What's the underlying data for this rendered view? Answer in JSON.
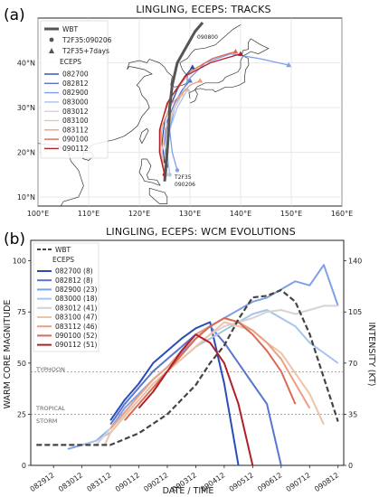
{
  "panels": {
    "a": {
      "label": "(a)",
      "title": "LINGLING, ECEPS: TRACKS",
      "legend": {
        "wbt": "WBT",
        "t2f35": "T2F35:090206",
        "t2f35_7": "T2F35+7days",
        "eceps": "ECEPS"
      },
      "lat_ticks": [
        "10°N",
        "20°N",
        "30°N",
        "40°N"
      ],
      "lon_ticks": [
        "100°E",
        "110°E",
        "120°E",
        "130°E",
        "140°E",
        "150°E",
        "160°E"
      ],
      "annotations": {
        "start": "090800",
        "t2f35": "T2F35",
        "t2f35_date": "090206"
      }
    },
    "b": {
      "label": "(b)",
      "title": "LINGLING, ECEPS: WCM EVOLUTIONS",
      "xlabel": "DATE / TIME",
      "ylabel_left": "WARM CORE MAGNITUDE",
      "ylabel_right": "INTENSITY (KT)",
      "legend": {
        "wbt": "WBT",
        "eceps": "ECEPS"
      },
      "thresholds": {
        "typhoon": "TYPHOON",
        "tropical": "TROPICAL",
        "storm": "STORM"
      }
    }
  },
  "chart_data": [
    {
      "type": "line",
      "title": "LINGLING, ECEPS: TRACKS",
      "xlim": [
        100,
        160
      ],
      "ylim": [
        8,
        50
      ],
      "xticks": [
        100,
        110,
        120,
        130,
        140,
        150,
        160
      ],
      "yticks": [
        10,
        20,
        30,
        40
      ],
      "series": [
        {
          "name": "WBT",
          "color": "#555555",
          "points": [
            [
              125.0,
              13.5
            ],
            [
              125.2,
              16
            ],
            [
              125.5,
              20
            ],
            [
              125.8,
              25
            ],
            [
              126.0,
              30
            ],
            [
              126.5,
              35
            ],
            [
              127.5,
              40
            ],
            [
              129.5,
              44
            ],
            [
              131,
              47
            ],
            [
              132.5,
              49
            ]
          ]
        },
        {
          "name": "082700",
          "color": "#2b4bb5",
          "points": [
            [
              125,
              18
            ],
            [
              124.5,
              22
            ],
            [
              125,
              27
            ],
            [
              126,
              30
            ],
            [
              127.5,
              34
            ],
            [
              129,
              37
            ],
            [
              130.5,
              39
            ]
          ]
        },
        {
          "name": "082812",
          "color": "#5a75d0",
          "points": [
            [
              125.5,
              17
            ],
            [
              125,
              22
            ],
            [
              125.5,
              27
            ],
            [
              127,
              31
            ],
            [
              128.5,
              34
            ],
            [
              130,
              36
            ]
          ]
        },
        {
          "name": "082900",
          "color": "#7ea0ea",
          "points": [
            [
              127.5,
              16
            ],
            [
              126.5,
              20
            ],
            [
              126,
              25
            ],
            [
              127,
              30
            ],
            [
              129.5,
              36
            ],
            [
              133,
              40
            ],
            [
              138,
              42
            ],
            [
              143.5,
              41
            ],
            [
              149.5,
              39.5
            ]
          ]
        },
        {
          "name": "083000",
          "color": "#a8c4ea",
          "points": [
            [
              126,
              15
            ],
            [
              125.5,
              20
            ],
            [
              126,
              25
            ],
            [
              127.5,
              30
            ],
            [
              129.5,
              34
            ]
          ]
        },
        {
          "name": "083012",
          "color": "#d4d4d4",
          "points": [
            [
              125.5,
              15
            ],
            [
              125,
              20
            ],
            [
              125.5,
              25
            ],
            [
              127,
              30
            ],
            [
              129,
              34
            ]
          ]
        },
        {
          "name": "083100",
          "color": "#eec4a8",
          "points": [
            [
              125,
              15
            ],
            [
              124.5,
              20
            ],
            [
              125,
              25
            ],
            [
              126.5,
              29
            ],
            [
              128.5,
              33
            ]
          ]
        },
        {
          "name": "083112",
          "color": "#eca080",
          "points": [
            [
              125,
              15
            ],
            [
              124.2,
              20
            ],
            [
              124.5,
              26
            ],
            [
              126.5,
              31
            ],
            [
              130,
              35
            ],
            [
              132,
              36
            ]
          ]
        },
        {
          "name": "090100",
          "color": "#d96a55",
          "points": [
            [
              125,
              15
            ],
            [
              124,
              20
            ],
            [
              124.2,
              26
            ],
            [
              126,
              32
            ],
            [
              130,
              38
            ],
            [
              134.5,
              41
            ],
            [
              139,
              42.5
            ]
          ]
        },
        {
          "name": "090112",
          "color": "#b02028",
          "points": [
            [
              125,
              15
            ],
            [
              124,
              20
            ],
            [
              124,
              25
            ],
            [
              125.5,
              31
            ],
            [
              129,
              37
            ],
            [
              134,
              40
            ],
            [
              140,
              42
            ]
          ]
        }
      ]
    },
    {
      "type": "line",
      "title": "LINGLING, ECEPS: WCM EVOLUTIONS",
      "xlabel": "DATE / TIME",
      "ylabel": "WARM CORE MAGNITUDE",
      "y2label": "INTENSITY (KT)",
      "categories": [
        "082912",
        "083012",
        "083112",
        "090112",
        "090212",
        "090312",
        "090412",
        "090512",
        "090612",
        "090712",
        "090812"
      ],
      "xlim": [
        0,
        10
      ],
      "ylim": [
        0,
        110
      ],
      "y2lim": [
        0,
        154
      ],
      "yticks": [
        0,
        25,
        50,
        75,
        100
      ],
      "y2ticks": [
        0,
        35,
        70,
        105,
        140
      ],
      "thresholds": [
        {
          "label": "TYPHOON",
          "value": 46
        },
        {
          "label": "TROPICAL STORM",
          "value": 25
        }
      ],
      "series": [
        {
          "name": "WBT",
          "axis": "right",
          "color": "#444444",
          "dashed": true,
          "x": [
            -0.6,
            0,
            1,
            2,
            3,
            4,
            5,
            5.5,
            6,
            6.5,
            7,
            7.5,
            8,
            8.5,
            9,
            9.5,
            10
          ],
          "values": [
            14,
            14,
            14,
            14,
            22,
            35,
            55,
            70,
            82,
            100,
            115,
            116,
            120,
            112,
            90,
            60,
            30
          ]
        },
        {
          "name": "082700 (8)",
          "color": "#2b4bb5",
          "x": [
            2,
            2.5,
            3,
            3.5,
            4,
            4.5,
            5,
            5.5,
            6,
            6.5
          ],
          "values": [
            22,
            32,
            40,
            50,
            56,
            62,
            67,
            70,
            40,
            0
          ]
        },
        {
          "name": "082812 (8)",
          "color": "#5a75d0",
          "x": [
            2,
            2.5,
            3,
            3.5,
            4,
            4.5,
            5,
            5.5,
            6,
            6.5,
            7,
            7.5,
            8
          ],
          "values": [
            20,
            30,
            38,
            46,
            52,
            58,
            64,
            68,
            60,
            50,
            40,
            30,
            0
          ]
        },
        {
          "name": "082900 (23)",
          "color": "#7ea0ea",
          "x": [
            0.5,
            1,
            1.5,
            2,
            2.5,
            3,
            3.5,
            4,
            4.5,
            5,
            5.5,
            6,
            6.5,
            7,
            7.5,
            8,
            8.5,
            9,
            9.5,
            10
          ],
          "values": [
            8,
            10,
            12,
            18,
            28,
            35,
            42,
            48,
            55,
            62,
            68,
            72,
            76,
            80,
            82,
            86,
            90,
            88,
            98,
            78
          ]
        },
        {
          "name": "083000 (18)",
          "color": "#a8c4ea",
          "x": [
            1,
            1.5,
            2,
            2.5,
            3,
            3.5,
            4,
            4.5,
            5,
            5.5,
            6,
            6.5,
            7,
            7.5,
            8,
            8.5,
            9,
            9.5,
            10
          ],
          "values": [
            10,
            12,
            16,
            24,
            32,
            40,
            46,
            52,
            58,
            62,
            66,
            70,
            74,
            76,
            72,
            68,
            60,
            55,
            50
          ]
        },
        {
          "name": "083012 (41)",
          "color": "#d4d4d4",
          "x": [
            1.5,
            2,
            2.5,
            3,
            3.5,
            4,
            4.5,
            5,
            5.5,
            6,
            6.5,
            7,
            7.5,
            8,
            8.5,
            9,
            9.5,
            10
          ],
          "values": [
            10,
            18,
            25,
            32,
            40,
            46,
            52,
            58,
            64,
            68,
            70,
            72,
            75,
            76,
            74,
            76,
            78,
            78
          ]
        },
        {
          "name": "083100 (47)",
          "color": "#eec4a8",
          "x": [
            1.8,
            2,
            2.5,
            3,
            3.5,
            4,
            4.5,
            5,
            5.5,
            6,
            6.5,
            7,
            7.5,
            8,
            8.5,
            9,
            9.5
          ],
          "values": [
            10,
            16,
            24,
            32,
            40,
            46,
            52,
            58,
            64,
            70,
            68,
            66,
            60,
            55,
            45,
            35,
            20
          ]
        },
        {
          "name": "083112 (46)",
          "color": "#eca080",
          "x": [
            2,
            2.5,
            3,
            3.5,
            4,
            4.5,
            5,
            5.5,
            6,
            6.5,
            7,
            7.5,
            8,
            8.5,
            9
          ],
          "values": [
            18,
            26,
            34,
            42,
            48,
            56,
            64,
            68,
            72,
            70,
            66,
            60,
            52,
            40,
            28
          ]
        },
        {
          "name": "090100 (52)",
          "color": "#d96a55",
          "x": [
            2.5,
            3,
            3.5,
            4,
            4.5,
            5,
            5.5,
            6,
            6.5,
            7,
            7.5,
            8,
            8.5
          ],
          "values": [
            22,
            30,
            38,
            46,
            54,
            62,
            68,
            72,
            70,
            64,
            56,
            46,
            30
          ]
        },
        {
          "name": "090112 (51)",
          "color": "#b02028",
          "x": [
            3,
            3.5,
            4,
            4.5,
            5,
            5.5,
            6,
            6.5,
            7
          ],
          "values": [
            28,
            36,
            46,
            56,
            64,
            60,
            50,
            30,
            0
          ]
        }
      ]
    }
  ]
}
